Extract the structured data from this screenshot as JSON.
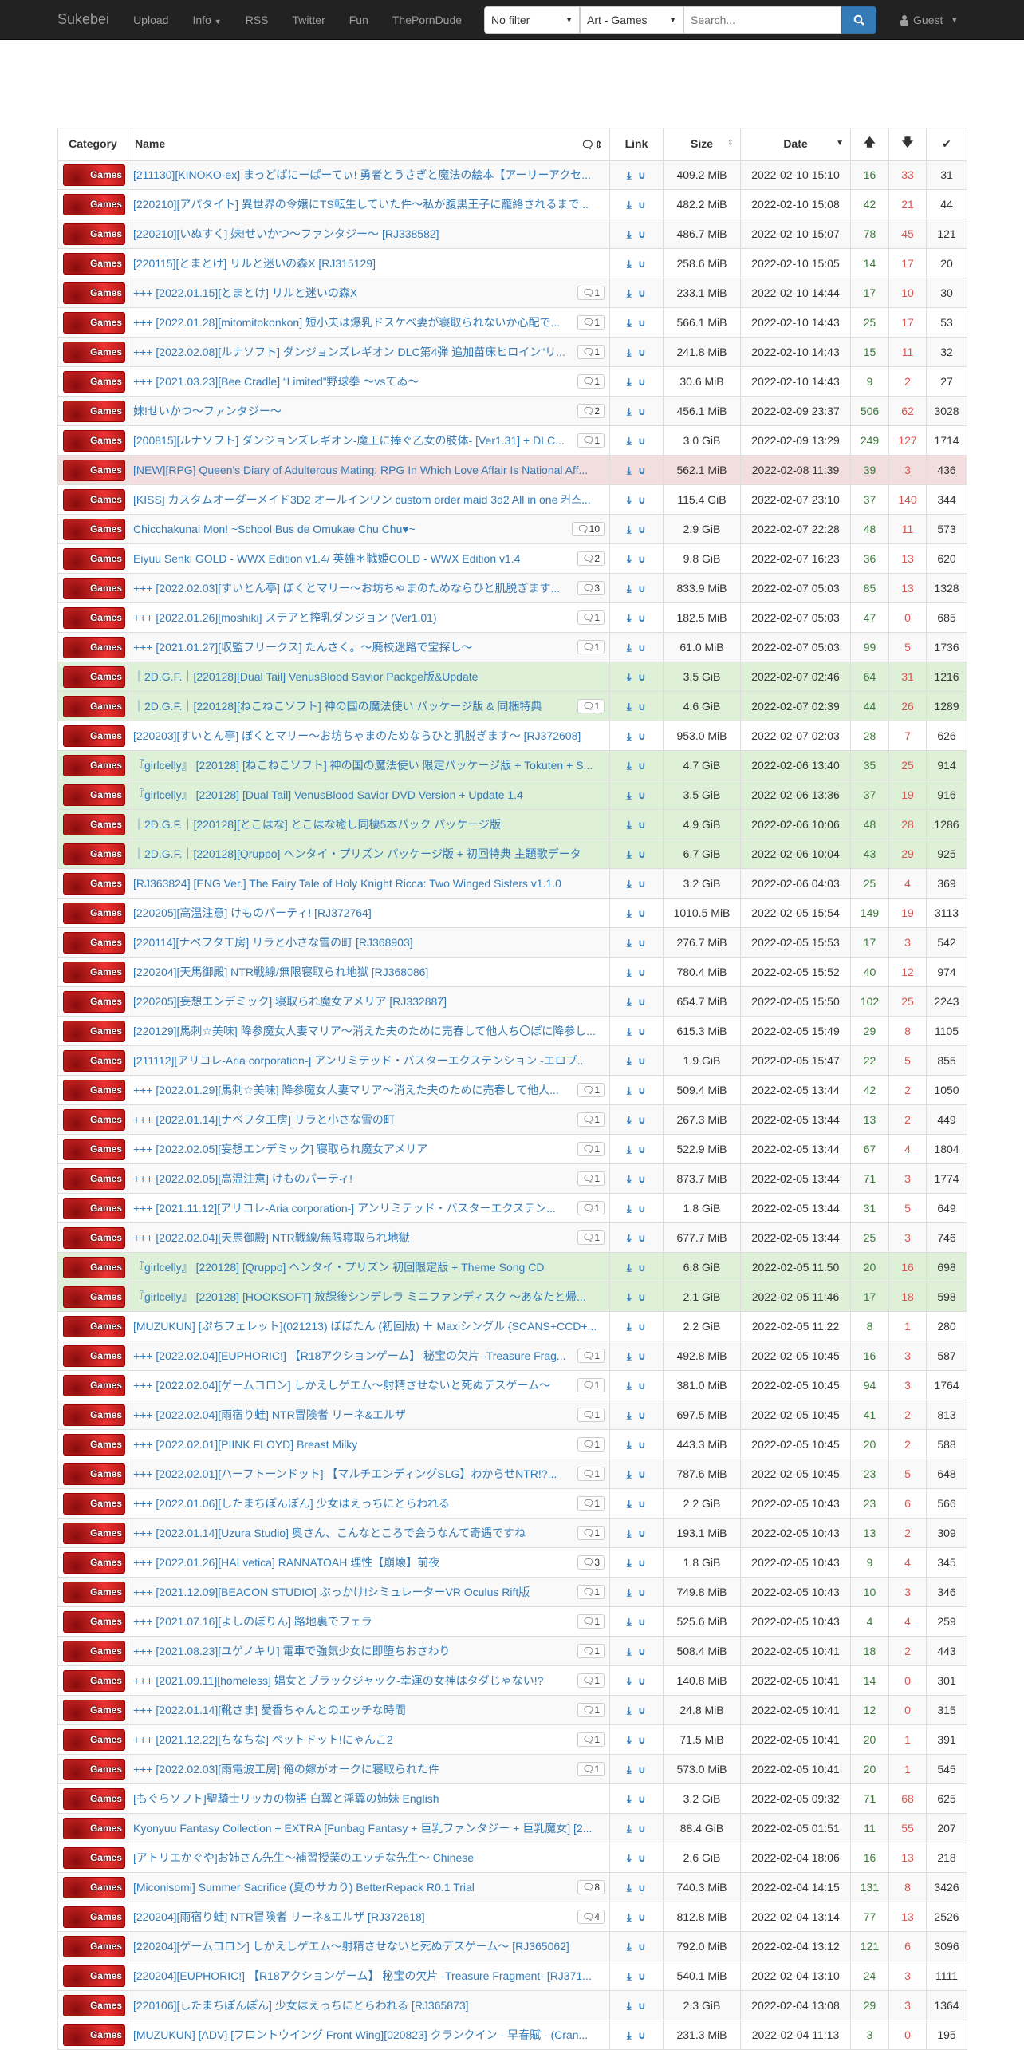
{
  "nav": {
    "brand": "Sukebei",
    "links": [
      "Upload",
      "Info",
      "RSS",
      "Twitter",
      "Fun",
      "ThePornDude"
    ],
    "filter": "No filter",
    "category": "Art - Games",
    "search_placeholder": "Search...",
    "user": "Guest"
  },
  "header": {
    "category": "Category",
    "name": "Name",
    "link": "Link",
    "size": "Size",
    "date": "Date"
  },
  "category_label": "Games",
  "colors": {
    "link": "#337ab7",
    "seeders": "#3c763d",
    "leechers": "#d9534f",
    "success_row": "#dff0d8",
    "danger_row": "#f2dede"
  },
  "rows": [
    [
      "",
      "[211130][KINOKO-ex] まっどばにーぱーてぃ! 勇者とうさぎと魔法の絵本【アーリーアクセ...",
      "",
      "409.2 MiB",
      "2022-02-10 15:10",
      16,
      33,
      31
    ],
    [
      "",
      "[220210][アパタイト] 異世界の令嬢にTS転生していた件～私が腹黒王子に籠絡されるまで...",
      "",
      "482.2 MiB",
      "2022-02-10 15:08",
      42,
      21,
      44
    ],
    [
      "",
      "[220210][いぬすく] 妹!せいかつ～ファンタジー～ [RJ338582]",
      "",
      "486.7 MiB",
      "2022-02-10 15:07",
      78,
      45,
      121
    ],
    [
      "",
      "[220115][とまとけ] リルと迷いの森X [RJ315129]",
      "",
      "258.6 MiB",
      "2022-02-10 15:05",
      14,
      17,
      20
    ],
    [
      "",
      "+++ [2022.01.15][とまとけ] リルと迷いの森X",
      "1",
      "233.1 MiB",
      "2022-02-10 14:44",
      17,
      10,
      30
    ],
    [
      "",
      "+++ [2022.01.28][mitomitokonkon] 短小夫は爆乳ドスケベ妻が寝取られないか心配で...",
      "1",
      "566.1 MiB",
      "2022-02-10 14:43",
      25,
      17,
      53
    ],
    [
      "",
      "+++ [2022.02.08][ルナソフト] ダンジョンズレギオン DLC第4弾 追加苗床ヒロイン\"リ...",
      "1",
      "241.8 MiB",
      "2022-02-10 14:43",
      15,
      11,
      32
    ],
    [
      "",
      "+++ [2021.03.23][Bee Cradle] “Limited”野球拳 ～vsてゐ～",
      "1",
      "30.6 MiB",
      "2022-02-10 14:43",
      9,
      2,
      27
    ],
    [
      "",
      "妹!せいかつ～ファンタジー～",
      "2",
      "456.1 MiB",
      "2022-02-09 23:37",
      506,
      62,
      3028
    ],
    [
      "",
      "[200815][ルナソフト] ダンジョンズレギオン-魔王に捧ぐ乙女の肢体- [Ver1.31] + DLC...",
      "1",
      "3.0 GiB",
      "2022-02-09 13:29",
      249,
      127,
      1714
    ],
    [
      "danger",
      "[NEW][RPG] Queen's Diary of Adulterous Mating: RPG In Which Love Affair Is National Aff...",
      "",
      "562.1 MiB",
      "2022-02-08 11:39",
      39,
      3,
      436
    ],
    [
      "",
      "[KISS] カスタムオーダーメイド3D2 オールインワン custom order maid 3d2 All in one 커스...",
      "",
      "115.4 GiB",
      "2022-02-07 23:10",
      37,
      140,
      344
    ],
    [
      "",
      "Chicchakunai Mon! ~School Bus de Omukae Chu Chu♥~",
      "10",
      "2.9 GiB",
      "2022-02-07 22:28",
      48,
      11,
      573
    ],
    [
      "",
      "Eiyuu Senki GOLD - WWX Edition v1.4/ 英雄＊戦姫GOLD - WWX Edition v1.4",
      "2",
      "9.8 GiB",
      "2022-02-07 16:23",
      36,
      13,
      620
    ],
    [
      "",
      "+++ [2022.02.03][すいとん亭] ぼくとマリー～お坊ちゃまのためならひと肌脱ぎます...",
      "3",
      "833.9 MiB",
      "2022-02-07 05:03",
      85,
      13,
      1328
    ],
    [
      "",
      "+++ [2022.01.26][moshiki] ステアと搾乳ダンジョン (Ver1.01)",
      "1",
      "182.5 MiB",
      "2022-02-07 05:03",
      47,
      0,
      685
    ],
    [
      "",
      "+++ [2021.01.27][収監フリークス] たんさく。～廃校迷路で宝探し～",
      "1",
      "61.0 MiB",
      "2022-02-07 05:03",
      99,
      5,
      1736
    ],
    [
      "success",
      "｜2D.G.F.｜[220128][Dual Tail] VenusBlood Savior Packge版&Update",
      "",
      "3.5 GiB",
      "2022-02-07 02:46",
      64,
      31,
      1216
    ],
    [
      "success",
      "｜2D.G.F.｜[220128][ねこねこソフト] 神の国の魔法使い パッケージ版 & 同梱特典",
      "1",
      "4.6 GiB",
      "2022-02-07 02:39",
      44,
      26,
      1289
    ],
    [
      "",
      "[220203][すいとん亭] ぼくとマリー～お坊ちゃまのためならひと肌脱ぎます～ [RJ372608]",
      "",
      "953.0 MiB",
      "2022-02-07 02:03",
      28,
      7,
      626
    ],
    [
      "success",
      "『girlcelly』 [220128] [ねこねこソフト] 神の国の魔法使い 限定パッケージ版 + Tokuten + S...",
      "",
      "4.7 GiB",
      "2022-02-06 13:40",
      35,
      25,
      914
    ],
    [
      "success",
      "『girlcelly』 [220128] [Dual Tail] VenusBlood Savior DVD Version + Update 1.4",
      "",
      "3.5 GiB",
      "2022-02-06 13:36",
      37,
      19,
      916
    ],
    [
      "success",
      "｜2D.G.F.｜[220128][とこはな] とこはな癒し同棲5本パック パッケージ版",
      "",
      "4.9 GiB",
      "2022-02-06 10:06",
      48,
      28,
      1286
    ],
    [
      "success",
      "｜2D.G.F.｜[220128][Qruppo] ヘンタイ・プリズン パッケージ版 + 初回特典 主題歌データ",
      "",
      "6.7 GiB",
      "2022-02-06 10:04",
      43,
      29,
      925
    ],
    [
      "",
      "[RJ363824] [ENG Ver.] The Fairy Tale of Holy Knight Ricca: Two Winged Sisters v1.1.0",
      "",
      "3.2 GiB",
      "2022-02-06 04:03",
      25,
      4,
      369
    ],
    [
      "",
      "[220205][高温注意] けものパーティ! [RJ372764]",
      "",
      "1010.5 MiB",
      "2022-02-05 15:54",
      149,
      19,
      3113
    ],
    [
      "",
      "[220114][ナベフタ工房] リラと小さな雪の町 [RJ368903]",
      "",
      "276.7 MiB",
      "2022-02-05 15:53",
      17,
      3,
      542
    ],
    [
      "",
      "[220204][天馬御殿] NTR戦線/無限寝取られ地獄 [RJ368086]",
      "",
      "780.4 MiB",
      "2022-02-05 15:52",
      40,
      12,
      974
    ],
    [
      "",
      "[220205][妄想エンデミック] 寝取られ魔女アメリア [RJ332887]",
      "",
      "654.7 MiB",
      "2022-02-05 15:50",
      102,
      25,
      2243
    ],
    [
      "",
      "[220129][馬刺☆美味] 降参魔女人妻マリア～消えた夫のために売春して他人ち〇ぽに降参し...",
      "",
      "615.3 MiB",
      "2022-02-05 15:49",
      29,
      8,
      1105
    ],
    [
      "",
      "[211112][アリコレ-Aria corporation-] アンリミテッド・バスターエクステンション -エロプ...",
      "",
      "1.9 GiB",
      "2022-02-05 15:47",
      22,
      5,
      855
    ],
    [
      "",
      "+++ [2022.01.29][馬刺☆美味] 降参魔女人妻マリア～消えた夫のために売春して他人...",
      "1",
      "509.4 MiB",
      "2022-02-05 13:44",
      42,
      2,
      1050
    ],
    [
      "",
      "+++ [2022.01.14][ナベフタ工房] リラと小さな雪の町",
      "1",
      "267.3 MiB",
      "2022-02-05 13:44",
      13,
      2,
      449
    ],
    [
      "",
      "+++ [2022.02.05][妄想エンデミック] 寝取られ魔女アメリア",
      "1",
      "522.9 MiB",
      "2022-02-05 13:44",
      67,
      4,
      1804
    ],
    [
      "",
      "+++ [2022.02.05][高温注意] けものパーティ!",
      "1",
      "873.7 MiB",
      "2022-02-05 13:44",
      71,
      3,
      1774
    ],
    [
      "",
      "+++ [2021.11.12][アリコレ-Aria corporation-] アンリミテッド・バスターエクステン...",
      "1",
      "1.8 GiB",
      "2022-02-05 13:44",
      31,
      5,
      649
    ],
    [
      "",
      "+++ [2022.02.04][天馬御殿] NTR戦線/無限寝取られ地獄",
      "1",
      "677.7 MiB",
      "2022-02-05 13:44",
      25,
      3,
      746
    ],
    [
      "success",
      "『girlcelly』 [220128] [Qruppo] ヘンタイ・プリズン 初回限定版 + Theme Song CD",
      "",
      "6.8 GiB",
      "2022-02-05 11:50",
      20,
      16,
      698
    ],
    [
      "success",
      "『girlcelly』 [220128] [HOOKSOFT] 放課後シンデレラ ミニファンディスク ～あなたと帰...",
      "",
      "2.1 GiB",
      "2022-02-05 11:46",
      17,
      18,
      598
    ],
    [
      "",
      "[MUZUKUN] [ぷちフェレット](021213) ぽぽたん (初回版) ＋ Maxiシングル {SCANS+CCD+...",
      "",
      "2.2 GiB",
      "2022-02-05 11:22",
      8,
      1,
      280
    ],
    [
      "",
      "+++ [2022.02.04][EUPHORIC!] 【R18アクションゲーム】 秘宝の欠片 -Treasure Frag...",
      "1",
      "492.8 MiB",
      "2022-02-05 10:45",
      16,
      3,
      587
    ],
    [
      "",
      "+++ [2022.02.04][ゲームコロン] しかえしゲエム～射精させないと死ぬデスゲーム～",
      "1",
      "381.0 MiB",
      "2022-02-05 10:45",
      94,
      3,
      1764
    ],
    [
      "",
      "+++ [2022.02.04][雨宿り蛙] NTR冒険者 リーネ&エルザ",
      "1",
      "697.5 MiB",
      "2022-02-05 10:45",
      41,
      2,
      813
    ],
    [
      "",
      "+++ [2022.02.01][PIINK FLOYD] Breast Milky",
      "1",
      "443.3 MiB",
      "2022-02-05 10:45",
      20,
      2,
      588
    ],
    [
      "",
      "+++ [2022.02.01][ハーフトーンドット] 【マルチエンディングSLG】わからせNTR!?...",
      "1",
      "787.6 MiB",
      "2022-02-05 10:45",
      23,
      5,
      648
    ],
    [
      "",
      "+++ [2022.01.06][したまちぽんぽん] 少女はえっちにとらわれる",
      "1",
      "2.2 GiB",
      "2022-02-05 10:43",
      23,
      6,
      566
    ],
    [
      "",
      "+++ [2022.01.14][Uzura Studio] 奥さん、こんなところで会うなんて奇遇ですね",
      "1",
      "193.1 MiB",
      "2022-02-05 10:43",
      13,
      2,
      309
    ],
    [
      "",
      "+++ [2022.01.26][HALvetica] RANNATOAH 理性【崩壊】前夜",
      "3",
      "1.8 GiB",
      "2022-02-05 10:43",
      9,
      4,
      345
    ],
    [
      "",
      "+++ [2021.12.09][BEACON STUDIO] ぶっかけ!シミュレーターVR Oculus Rift版",
      "1",
      "749.8 MiB",
      "2022-02-05 10:43",
      10,
      3,
      346
    ],
    [
      "",
      "+++ [2021.07.16][よしのぼりん] 路地裏でフェラ",
      "1",
      "525.6 MiB",
      "2022-02-05 10:43",
      4,
      4,
      259
    ],
    [
      "",
      "+++ [2021.08.23][ユゲノキリ] 電車で強気少女に即堕ちおさわり",
      "1",
      "508.4 MiB",
      "2022-02-05 10:41",
      18,
      2,
      443
    ],
    [
      "",
      "+++ [2021.09.11][homeless] 娼女とブラックジャック-幸運の女神はタダじゃない!?",
      "1",
      "140.8 MiB",
      "2022-02-05 10:41",
      14,
      0,
      301
    ],
    [
      "",
      "+++ [2022.01.14][靴さま] 愛香ちゃんとのエッチな時間",
      "1",
      "24.8 MiB",
      "2022-02-05 10:41",
      12,
      0,
      315
    ],
    [
      "",
      "+++ [2021.12.22][ちなちな] ペットドット!にゃんこ2",
      "1",
      "71.5 MiB",
      "2022-02-05 10:41",
      20,
      1,
      391
    ],
    [
      "",
      "+++ [2022.02.03][雨電波工房] 俺の嫁がオークに寝取られた件",
      "1",
      "573.0 MiB",
      "2022-02-05 10:41",
      20,
      1,
      545
    ],
    [
      "",
      "[もぐらソフト]聖騎士リッカの物語 白翼と淫翼の姉妹 English",
      "",
      "3.2 GiB",
      "2022-02-05 09:32",
      71,
      68,
      625
    ],
    [
      "",
      "Kyonyuu Fantasy Collection + EXTRA [Funbag Fantasy + 巨乳ファンタジー + 巨乳魔女] [2...",
      "",
      "88.4 GiB",
      "2022-02-05 01:51",
      11,
      55,
      207
    ],
    [
      "",
      "[アトリエかぐや]お姉さん先生～補習授業のエッチな先生～ Chinese",
      "",
      "2.6 GiB",
      "2022-02-04 18:06",
      16,
      13,
      218
    ],
    [
      "",
      "[Miconisomi] Summer Sacrifice (夏のサカり) BetterRepack R0.1 Trial",
      "8",
      "740.3 MiB",
      "2022-02-04 14:15",
      131,
      8,
      3426
    ],
    [
      "",
      "[220204][雨宿り蛙] NTR冒険者 リーネ&エルザ [RJ372618]",
      "4",
      "812.8 MiB",
      "2022-02-04 13:14",
      77,
      13,
      2526
    ],
    [
      "",
      "[220204][ゲームコロン] しかえしゲエム～射精させないと死ぬデスゲーム～ [RJ365062]",
      "",
      "792.0 MiB",
      "2022-02-04 13:12",
      121,
      6,
      3096
    ],
    [
      "",
      "[220204][EUPHORIC!] 【R18アクションゲーム】 秘宝の欠片 -Treasure Fragment- [RJ371...",
      "",
      "540.1 MiB",
      "2022-02-04 13:10",
      24,
      3,
      1111
    ],
    [
      "",
      "[220106][したまちぽんぽん] 少女はえっちにとらわれる [RJ365873]",
      "",
      "2.3 GiB",
      "2022-02-04 13:08",
      29,
      3,
      1364
    ],
    [
      "",
      "[MUZUKUN] [ADV] [フロントウイング Front Wing][020823] クランクイン - 早春賦 - (Cran...",
      "",
      "231.3 MiB",
      "2022-02-04 11:13",
      3,
      0,
      195
    ]
  ]
}
